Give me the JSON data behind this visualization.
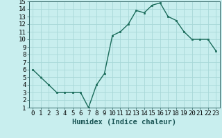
{
  "x": [
    0,
    1,
    2,
    3,
    4,
    5,
    6,
    7,
    8,
    9,
    10,
    11,
    12,
    13,
    14,
    15,
    16,
    17,
    18,
    19,
    20,
    21,
    22,
    23
  ],
  "y": [
    6.0,
    5.0,
    4.0,
    3.0,
    3.0,
    3.0,
    3.0,
    1.0,
    4.0,
    5.5,
    10.5,
    11.0,
    12.0,
    13.8,
    13.5,
    14.5,
    14.8,
    13.0,
    12.5,
    11.0,
    10.0,
    10.0,
    10.0,
    8.5
  ],
  "line_color": "#1a6b5a",
  "marker": "s",
  "marker_size": 2.0,
  "bg_color": "#c8eeee",
  "grid_color": "#a8d8d8",
  "xlabel": "Humidex (Indice chaleur)",
  "xlim": [
    -0.5,
    23.5
  ],
  "ylim": [
    1,
    15
  ],
  "xticks": [
    0,
    1,
    2,
    3,
    4,
    5,
    6,
    7,
    8,
    9,
    10,
    11,
    12,
    13,
    14,
    15,
    16,
    17,
    18,
    19,
    20,
    21,
    22,
    23
  ],
  "yticks": [
    1,
    2,
    3,
    4,
    5,
    6,
    7,
    8,
    9,
    10,
    11,
    12,
    13,
    14,
    15
  ],
  "tick_label_size": 6.5,
  "xlabel_size": 7.5,
  "linewidth": 1.0
}
